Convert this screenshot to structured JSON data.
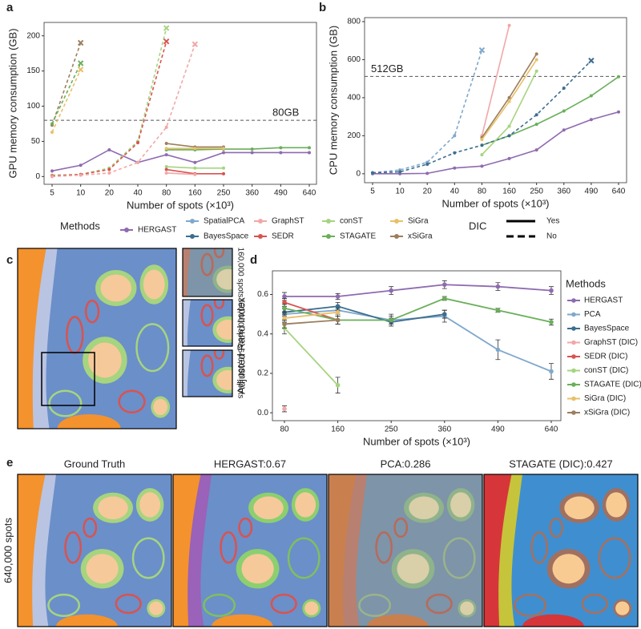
{
  "panel_labels": [
    "a",
    "b",
    "c",
    "d",
    "e"
  ],
  "shared_legend": {
    "title": "Methods",
    "items": [
      {
        "name": "HERGAST",
        "color": "#8e6bb0"
      },
      {
        "name": "SpatialPCA",
        "color": "#7fa8cc"
      },
      {
        "name": "BayesSpace",
        "color": "#3c6e8f"
      },
      {
        "name": "GraphST",
        "color": "#f2a7a7"
      },
      {
        "name": "SEDR",
        "color": "#d9534f"
      },
      {
        "name": "conST",
        "color": "#a6d47f"
      },
      {
        "name": "STAGATE",
        "color": "#6aaf5a"
      },
      {
        "name": "SiGra",
        "color": "#e8c06a"
      },
      {
        "name": "xSiGra",
        "color": "#9b7f5e"
      }
    ],
    "style_title": "DIC",
    "style_items": [
      {
        "name": "Yes",
        "line_style": "solid"
      },
      {
        "name": "No",
        "line_style": "dashed"
      }
    ]
  },
  "chart_data": [
    {
      "type": "line",
      "y_label": "GPU memory consumption (GB)",
      "x_label": "Number of spots (×10³)",
      "categories": [
        "5",
        "10",
        "20",
        "40",
        "80",
        "160",
        "250",
        "360",
        "490",
        "640"
      ],
      "ylim": [
        -11,
        219
      ],
      "yticks": [
        0,
        50,
        100,
        150,
        200
      ],
      "reference_line": {
        "value": 80,
        "label": "80GB"
      },
      "series": [
        {
          "name": "HERGAST",
          "color": "#8e6bb0",
          "line_style": "solid",
          "values": [
            8,
            16,
            38,
            20,
            31,
            20,
            34,
            34,
            34,
            34
          ]
        },
        {
          "name": "STAGATE",
          "color": "#6aaf5a",
          "line_style": "solid",
          "values": [
            null,
            null,
            null,
            null,
            38,
            38,
            39,
            39,
            41,
            41
          ]
        },
        {
          "name": "xSiGra",
          "color": "#9b7f5e",
          "line_style": "solid",
          "values": [
            null,
            null,
            null,
            null,
            47,
            42,
            42,
            null,
            null,
            null
          ]
        },
        {
          "name": "SiGra",
          "color": "#e8c06a",
          "line_style": "solid",
          "values": [
            null,
            null,
            null,
            null,
            40,
            40,
            40,
            null,
            null,
            null
          ]
        },
        {
          "name": "conST",
          "color": "#a6d47f",
          "line_style": "solid",
          "values": [
            null,
            null,
            null,
            null,
            14,
            12,
            12,
            null,
            null,
            null
          ]
        },
        {
          "name": "SEDR",
          "color": "#d9534f",
          "line_style": "solid",
          "values": [
            null,
            null,
            null,
            null,
            10,
            4,
            4,
            null,
            null,
            null
          ]
        },
        {
          "name": "GraphST",
          "color": "#f2a7a7",
          "line_style": "solid",
          "values": [
            null,
            null,
            null,
            null,
            5,
            3,
            null,
            null,
            null,
            null
          ]
        },
        {
          "name": "xSiGra",
          "color": "#9b7f5e",
          "line_style": "dashed",
          "values": [
            73,
            190,
            null,
            null,
            null,
            null,
            null,
            null,
            null,
            null
          ]
        },
        {
          "name": "STAGATE",
          "color": "#6aaf5a",
          "line_style": "dashed",
          "values": [
            75,
            161,
            null,
            null,
            null,
            null,
            null,
            null,
            null,
            null
          ]
        },
        {
          "name": "SiGra",
          "color": "#e8c06a",
          "line_style": "dashed",
          "values": [
            63,
            152,
            null,
            null,
            null,
            null,
            null,
            null,
            null,
            null
          ]
        },
        {
          "name": "conST",
          "color": "#a6d47f",
          "line_style": "dashed",
          "values": [
            2,
            3,
            12,
            50,
            211,
            null,
            null,
            null,
            null,
            null
          ]
        },
        {
          "name": "SEDR",
          "color": "#d9534f",
          "line_style": "dashed",
          "values": [
            1,
            3,
            10,
            48,
            192,
            null,
            null,
            null,
            null,
            null
          ]
        },
        {
          "name": "GraphST",
          "color": "#f2a7a7",
          "line_style": "dashed",
          "values": [
            0,
            2,
            5,
            20,
            70,
            188,
            null,
            null,
            null,
            null
          ]
        }
      ]
    },
    {
      "type": "line",
      "y_label": "CPU memory consumption (GB)",
      "x_label": "Number of spots (×10³)",
      "categories": [
        "5",
        "10",
        "20",
        "40",
        "80",
        "160",
        "250",
        "360",
        "490",
        "640"
      ],
      "ylim": [
        -47,
        821
      ],
      "yticks": [
        0,
        200,
        400,
        600,
        800
      ],
      "reference_line": {
        "value": 512,
        "label": "512GB"
      },
      "series": [
        {
          "name": "HERGAST",
          "color": "#8e6bb0",
          "line_style": "solid",
          "values": [
            0,
            0,
            2,
            30,
            40,
            80,
            125,
            230,
            285,
            325
          ]
        },
        {
          "name": "STAGATE",
          "color": "#6aaf5a",
          "line_style": "solid",
          "values": [
            null,
            null,
            null,
            null,
            150,
            200,
            260,
            330,
            410,
            510
          ]
        },
        {
          "name": "SpatialPCA",
          "color": "#7fa8cc",
          "line_style": "dashed",
          "values": [
            5,
            20,
            60,
            200,
            650,
            null,
            null,
            null,
            null,
            null
          ]
        },
        {
          "name": "BayesSpace",
          "color": "#3c6e8f",
          "line_style": "dashed",
          "values": [
            5,
            10,
            50,
            110,
            150,
            200,
            310,
            450,
            595,
            null
          ]
        },
        {
          "name": "GraphST",
          "color": "#f2a7a7",
          "line_style": "solid",
          "values": [
            null,
            null,
            null,
            null,
            200,
            780,
            null,
            null,
            null,
            null
          ]
        },
        {
          "name": "xSiGra",
          "color": "#9b7f5e",
          "line_style": "solid",
          "values": [
            null,
            null,
            null,
            null,
            190,
            400,
            630,
            null,
            null,
            null
          ]
        },
        {
          "name": "SiGra",
          "color": "#e8c06a",
          "line_style": "solid",
          "values": [
            null,
            null,
            null,
            null,
            180,
            380,
            600,
            null,
            null,
            null
          ]
        },
        {
          "name": "conST",
          "color": "#a6d47f",
          "line_style": "solid",
          "values": [
            null,
            null,
            null,
            null,
            100,
            250,
            540,
            null,
            null,
            null
          ]
        }
      ]
    },
    {
      "type": "errorline",
      "y_label": "Adjusted Rand Index",
      "x_label": "Number of spots (×10³)",
      "legend_title": "Methods",
      "categories": [
        "80",
        "160",
        "250",
        "360",
        "490",
        "640"
      ],
      "ylim": [
        -0.04,
        0.72
      ],
      "yticks": [
        {
          "value": 0,
          "label": "0.0"
        },
        {
          "value": 0.2,
          "label": "0.2"
        },
        {
          "value": 0.4,
          "label": "0.4"
        },
        {
          "value": 0.6,
          "label": "0.6"
        }
      ],
      "series": [
        {
          "name": "HERGAST",
          "color": "#8e6bb0",
          "values": [
            0.59,
            0.59,
            0.62,
            0.65,
            0.64,
            0.62
          ],
          "errors": [
            0.02,
            0.015,
            0.02,
            0.02,
            0.02,
            0.02
          ]
        },
        {
          "name": "PCA",
          "color": "#7fa8cc",
          "values": [
            0.5,
            0.52,
            0.47,
            0.49,
            0.32,
            0.21
          ],
          "errors": [
            0.03,
            0.02,
            0.02,
            0.03,
            0.05,
            0.04
          ]
        },
        {
          "name": "BayesSpace",
          "color": "#3c6e8f",
          "values": [
            0.51,
            0.54,
            0.46,
            0.5,
            null,
            null
          ],
          "errors": [
            0.02,
            0.02,
            0.02,
            0.02,
            null,
            null
          ]
        },
        {
          "name": "GraphST (DIC)",
          "color": "#f2a7a7",
          "values": [
            0.02,
            null,
            null,
            null,
            null,
            null
          ],
          "errors": [
            0.015,
            null,
            null,
            null,
            null,
            null
          ]
        },
        {
          "name": "SEDR (DIC)",
          "color": "#d9534f",
          "values": [
            0.56,
            0.47,
            null,
            null,
            null,
            null
          ],
          "errors": [
            0.02,
            0.02,
            null,
            null,
            null,
            null
          ]
        },
        {
          "name": "conST (DIC)",
          "color": "#a6d47f",
          "values": [
            0.43,
            0.14,
            null,
            null,
            null,
            null
          ],
          "errors": [
            0.03,
            0.04,
            null,
            null,
            null,
            null
          ]
        },
        {
          "name": "STAGATE (DIC)",
          "color": "#6aaf5a",
          "values": [
            0.53,
            0.47,
            0.47,
            0.58,
            0.52,
            0.46
          ],
          "errors": [
            0.02,
            0.02,
            0.03,
            0.01,
            0.01,
            0.015
          ]
        },
        {
          "name": "SiGra (DIC)",
          "color": "#e8c06a",
          "values": [
            0.48,
            0.51,
            null,
            null,
            null,
            null
          ],
          "errors": [
            0.02,
            0.02,
            null,
            null,
            null,
            null
          ]
        },
        {
          "name": "xSiGra (DIC)",
          "color": "#9b7f5e",
          "values": [
            0.45,
            0.47,
            null,
            null,
            null,
            null
          ],
          "errors": [
            0.02,
            0.02,
            null,
            null,
            null,
            null
          ]
        }
      ]
    }
  ],
  "images": {
    "c_labels": [
      "160,000 spots",
      "360,000 spots",
      "640,000 spots"
    ],
    "e_titles": [
      "Ground Truth",
      "HERGAST:0.67",
      "PCA:0.286",
      "STAGATE (DIC):0.427"
    ],
    "e_side_label": "640,000 spots"
  }
}
